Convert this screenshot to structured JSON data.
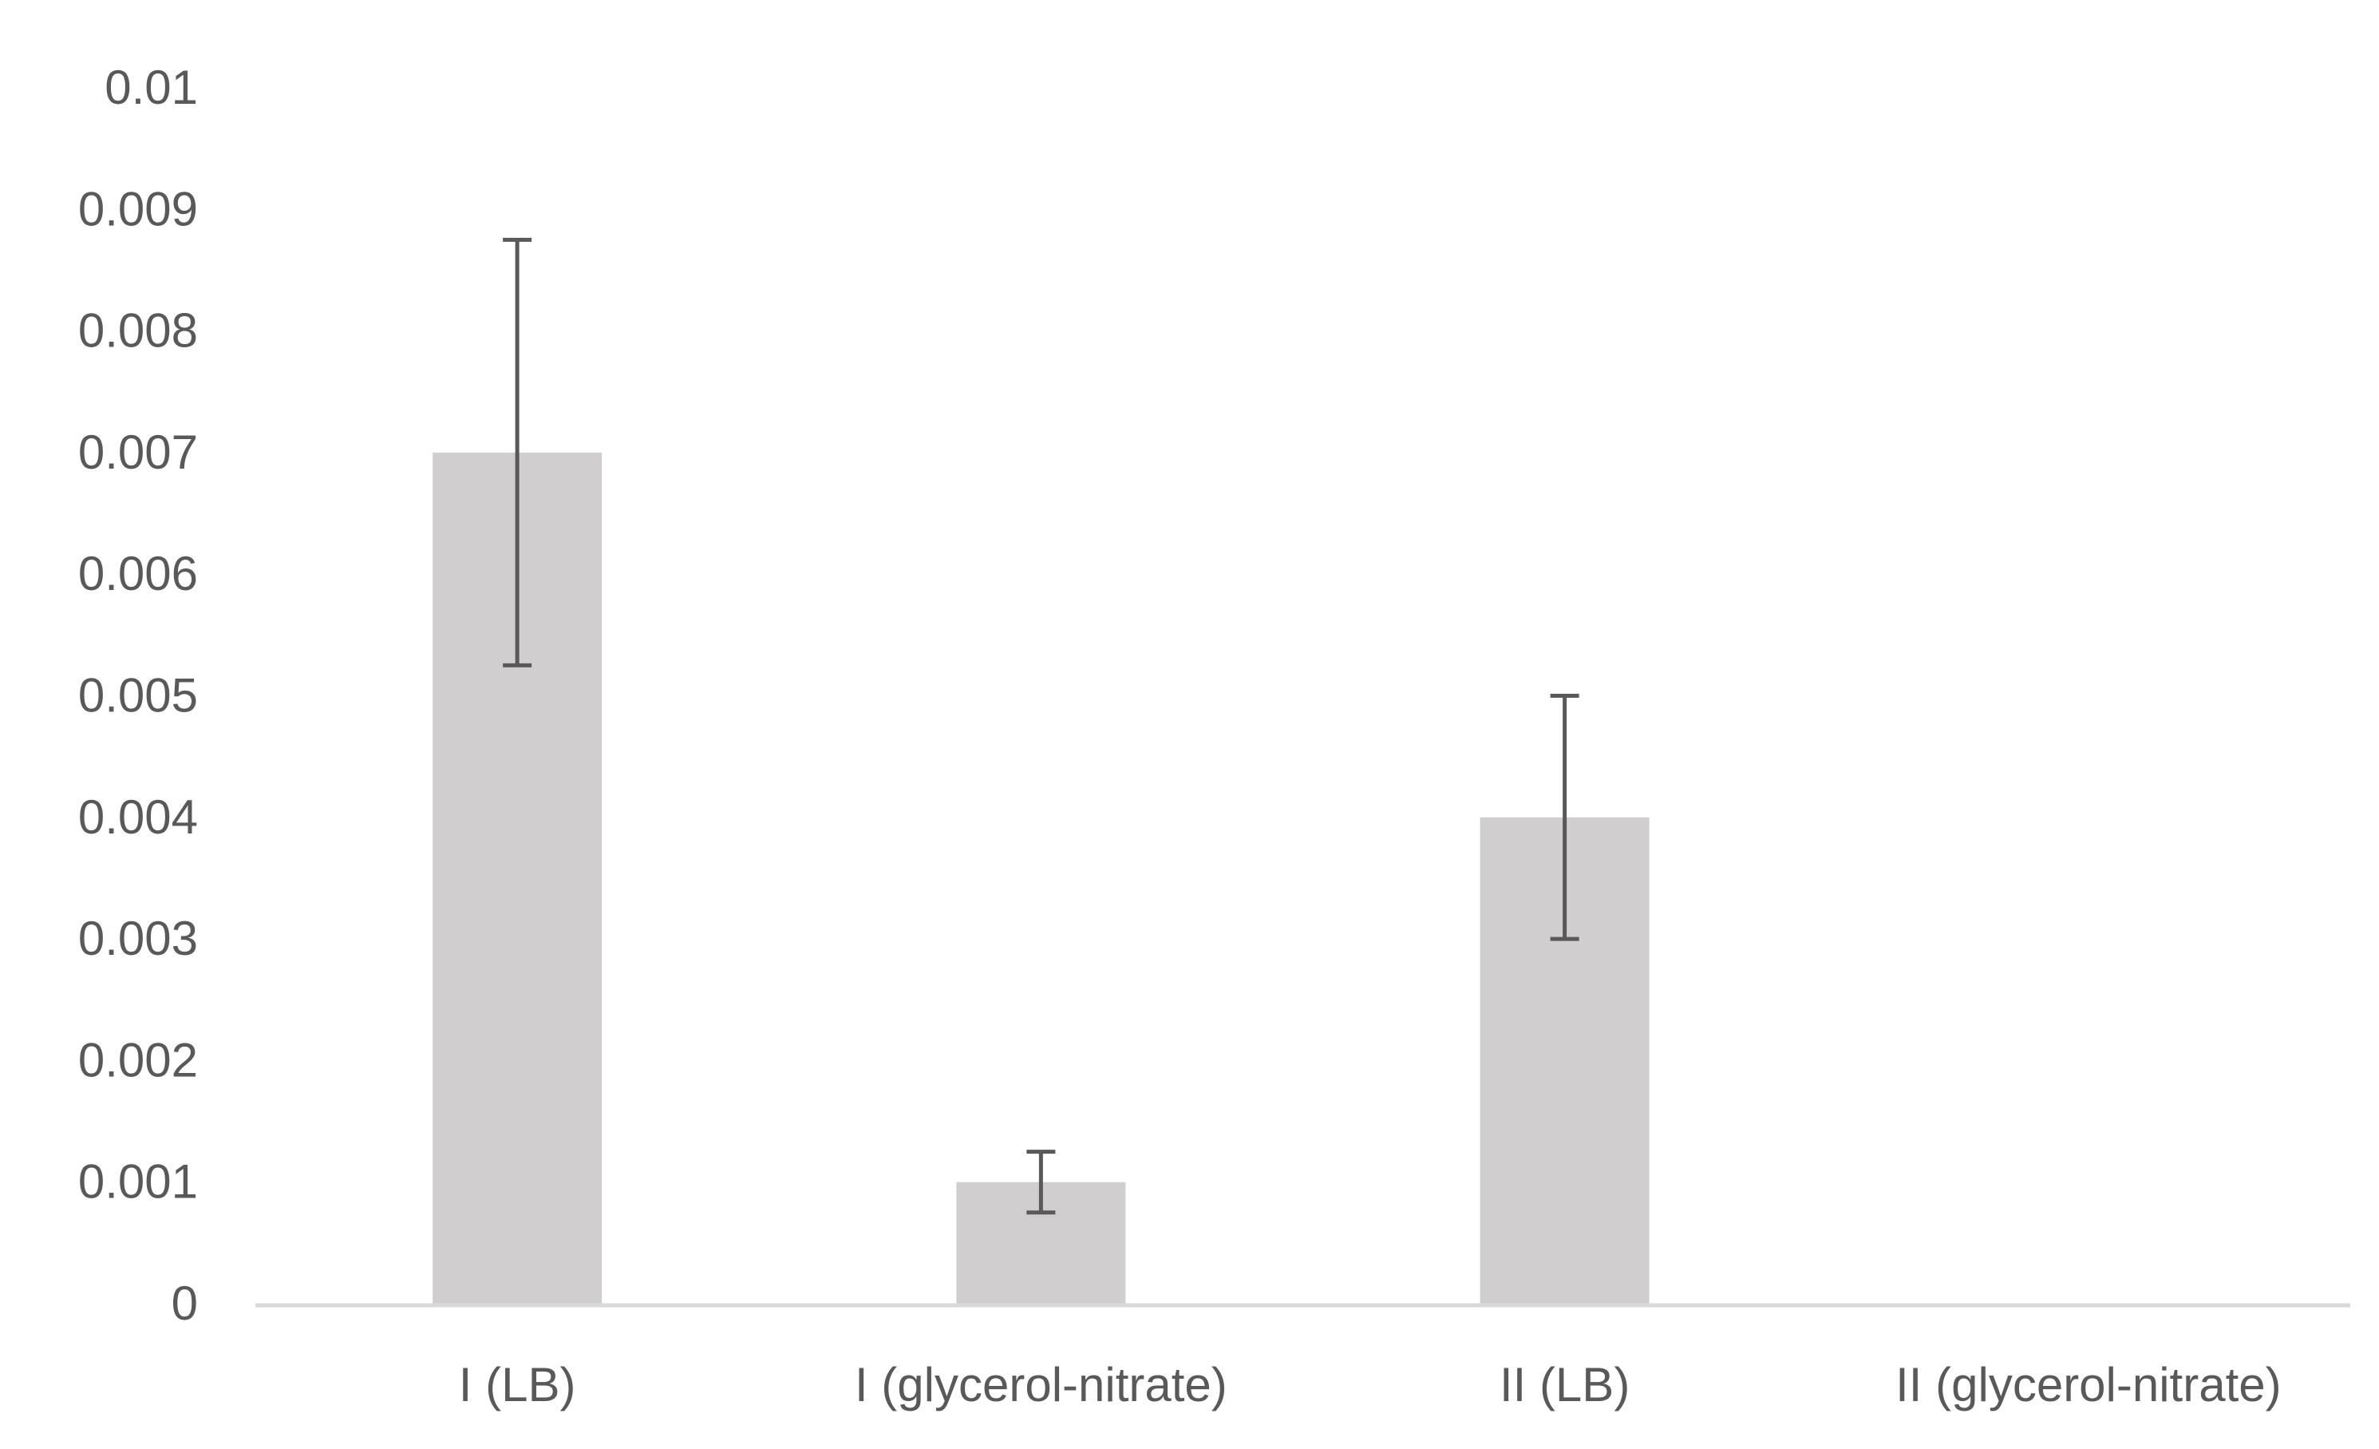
{
  "chart_data": {
    "type": "bar",
    "title": "",
    "xlabel": "",
    "ylabel": "",
    "categories": [
      "I (LB)",
      "I (glycerol-nitrate)",
      "II (LB)",
      "II (glycerol-nitrate)"
    ],
    "values": [
      0.007,
      0.001,
      0.004,
      0.0
    ],
    "error_bars": {
      "lower": [
        0.00525,
        0.00075,
        0.003,
        null
      ],
      "upper": [
        0.00875,
        0.00125,
        0.005,
        null
      ]
    },
    "ylim": [
      0,
      0.01
    ],
    "y_ticks": [
      "0",
      "0.001",
      "0.002",
      "0.003",
      "0.004",
      "0.005",
      "0.006",
      "0.007",
      "0.008",
      "0.009",
      "0.01"
    ],
    "grid": false,
    "legend": "none",
    "colors": {
      "bar": "#d0cece",
      "error_bar": "#595959",
      "axis": "#d9d9d9",
      "text": "#595959"
    }
  }
}
